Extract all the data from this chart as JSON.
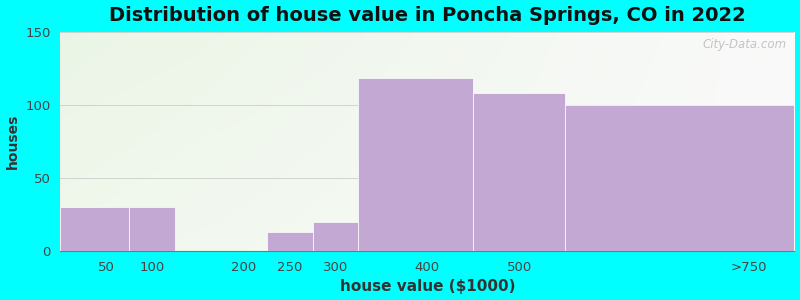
{
  "categories": [
    "50",
    "100",
    "200",
    "250",
    "300",
    "400",
    "500",
    ">750"
  ],
  "bin_left": [
    0,
    75,
    125,
    225,
    275,
    325,
    450,
    550
  ],
  "bin_right": [
    75,
    125,
    225,
    275,
    325,
    450,
    550,
    800
  ],
  "values": [
    30,
    30,
    0,
    13,
    20,
    118,
    108,
    100
  ],
  "bar_color": "#C4A8D4",
  "background_color": "#00FFFF",
  "title": "Distribution of house value in Poncha Springs, CO in 2022",
  "title_fontsize": 14,
  "xlabel": "house value ($1000)",
  "ylabel": "houses",
  "xlabel_fontsize": 11,
  "ylabel_fontsize": 10,
  "ylim": [
    0,
    150
  ],
  "yticks": [
    0,
    50,
    100,
    150
  ],
  "xtick_positions": [
    50,
    100,
    200,
    250,
    300,
    400,
    500,
    750
  ],
  "xtick_labels": [
    "50",
    "100",
    "200",
    "250",
    "300",
    "400",
    "500",
    ">750"
  ],
  "grid_color": "#BBBBBB",
  "grid_alpha": 0.6,
  "watermark": "City-Data.com",
  "xmin": 0,
  "xmax": 800
}
